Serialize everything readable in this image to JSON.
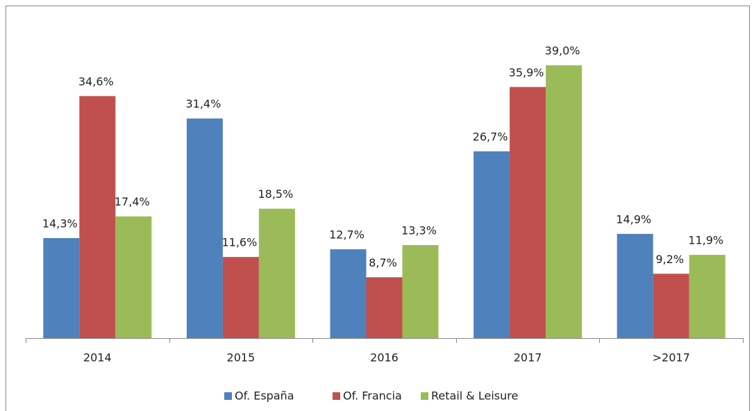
{
  "chart_data": {
    "type": "bar",
    "categories": [
      "2014",
      "2015",
      "2016",
      "2017",
      ">2017"
    ],
    "series": [
      {
        "name": "Of. España",
        "color": "#4f81bd",
        "values": [
          14.3,
          31.4,
          12.7,
          26.7,
          14.9
        ],
        "value_labels": [
          "14,3%",
          "31,4%",
          "12,7%",
          "26,7%",
          "14,9%"
        ]
      },
      {
        "name": "Of. Francia",
        "color": "#c0504d",
        "values": [
          34.6,
          11.6,
          8.7,
          35.9,
          9.2
        ],
        "value_labels": [
          "34,6%",
          "11,6%",
          "8,7%",
          "35,9%",
          "9,2%"
        ]
      },
      {
        "name": "Retail & Leisure",
        "color": "#9bbb59",
        "values": [
          17.4,
          18.5,
          13.3,
          39.0,
          11.9
        ],
        "value_labels": [
          "17,4%",
          "18,5%",
          "13,3%",
          "39,0%",
          "11,9%"
        ]
      }
    ],
    "ylim": [
      0,
      40
    ],
    "legend": "bottom"
  }
}
